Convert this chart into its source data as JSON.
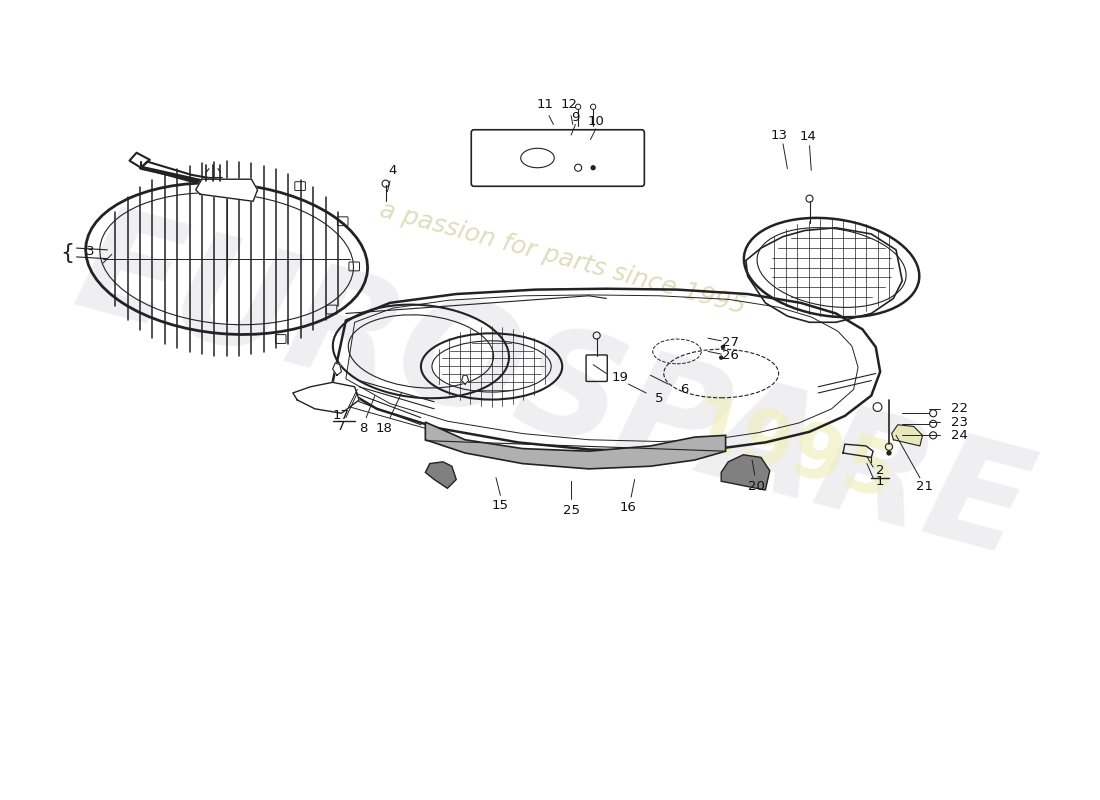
{
  "bg_color": "#ffffff",
  "line_color": "#222222",
  "label_color": "#111111",
  "watermark_color": "#d8d8e0",
  "watermark_yellow": "#f0f0c0",
  "gray_fill": "#aaaaaa",
  "light_gray": "#cccccc"
}
